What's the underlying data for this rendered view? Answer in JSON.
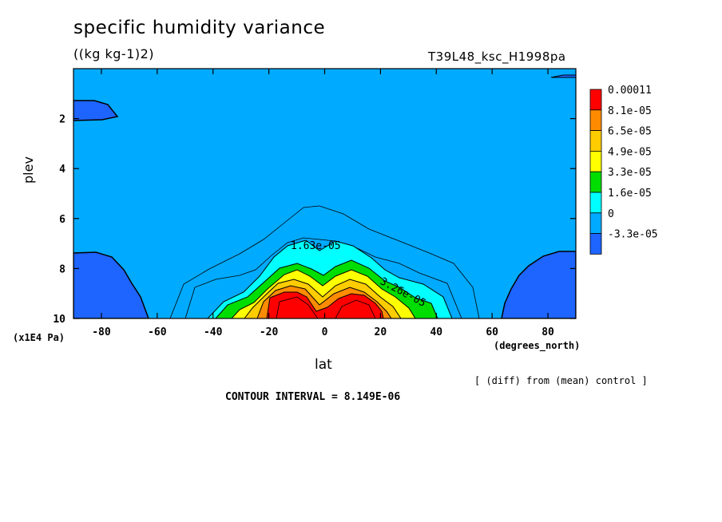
{
  "chart_data": {
    "type": "contour",
    "title": "specific humidity variance",
    "units": "((kg kg-1)2)",
    "run_id": "T39L48_ksc_H1998pa",
    "xlabel": "lat",
    "x_unit": "(degrees_north)",
    "ylabel": "plev",
    "y_unit": "(x1E4 Pa)",
    "xlim": [
      -90,
      90
    ],
    "ylim": [
      10,
      0
    ],
    "x_ticks": [
      "-80",
      "-60",
      "-40",
      "-20",
      "0",
      "20",
      "40",
      "60",
      "80"
    ],
    "y_ticks": [
      "2",
      "4",
      "6",
      "8",
      "10"
    ],
    "legend": {
      "labels": [
        "0.00011",
        "8.1e-05",
        "6.5e-05",
        "4.9e-05",
        "3.3e-05",
        "1.6e-05",
        "0",
        "-3.3e-05"
      ],
      "colors": [
        "#ff0000",
        "#ff8c00",
        "#ffcc00",
        "#ffff00",
        "#00dd00",
        "#00ffff",
        "#00aaff",
        "#1e64ff"
      ]
    },
    "contour_labels": [
      "1.63e-05",
      "3.26e-05"
    ],
    "contour_interval_text": "CONTOUR INTERVAL = 8.149E-06",
    "note": "[ (diff) from (mean) control ]"
  }
}
